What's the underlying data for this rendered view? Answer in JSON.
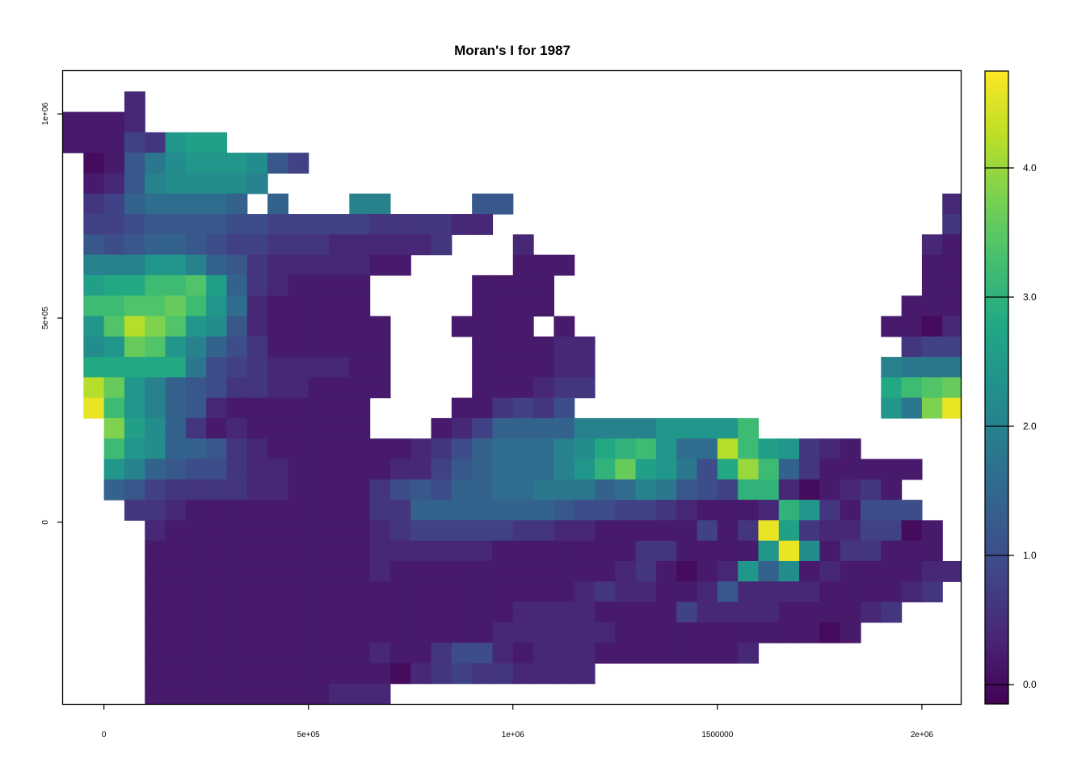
{
  "chart_data": {
    "type": "heatmap",
    "title": "Moran's I for 1987",
    "xlabel": "",
    "ylabel": "",
    "xlim": [
      -100000,
      2095000
    ],
    "ylim": [
      -445000,
      1105000
    ],
    "x_ticks": [
      {
        "value": 0,
        "label": "0"
      },
      {
        "value": 500000,
        "label": "5e+05"
      },
      {
        "value": 1000000,
        "label": "1e+06"
      },
      {
        "value": 1500000,
        "label": "1500000"
      },
      {
        "value": 2000000,
        "label": "2e+06"
      }
    ],
    "y_ticks": [
      {
        "value": 0,
        "label": "0"
      },
      {
        "value": 500000,
        "label": "5e+05"
      },
      {
        "value": 1000000,
        "label": "1e+06"
      }
    ],
    "grid": false,
    "colorscale": "viridis",
    "color_range": [
      -0.15,
      4.75
    ],
    "legend": {
      "position": "right",
      "ticks": [
        {
          "value": 0.0,
          "label": "0.0"
        },
        {
          "value": 1.0,
          "label": "1.0"
        },
        {
          "value": 2.0,
          "label": "2.0"
        },
        {
          "value": 3.0,
          "label": "3.0"
        },
        {
          "value": 4.0,
          "label": "4.0"
        }
      ]
    },
    "cell_size": 50000,
    "x_origin": -100000,
    "y_top": 1105000,
    "missing": ".",
    "code_values": {
      "a": 0.0,
      "b": 0.2,
      "c": 0.4,
      "d": 0.6,
      "e": 0.8,
      "f": 1.0,
      "g": 1.2,
      "h": 1.4,
      "i": 1.6,
      "j": 1.8,
      "k": 2.0,
      "l": 2.2,
      "m": 2.4,
      "n": 2.6,
      "o": 2.8,
      "p": 3.0,
      "q": 3.2,
      "r": 3.4,
      "s": 3.6,
      "t": 3.8,
      "u": 4.0,
      "v": 4.2,
      "w": 4.4,
      "x": 4.6
    },
    "rows": [
      ".............................................hhg...",
      "...c.........................................gfe...",
      "bbbc.........................................edcc..",
      "bbbedmnn.....................................dccb..",
      ".abgjlmmmlge.................................ccbaa.",
      ".bcgkllllk..................................bbaaaa.",
      ".dehiiiih.h...kk....gg.....................cbbaaa..",
      ".eefggggffeeeeeddddcc......................dcbaaab.",
      ".gfghhgfeedddcccccd...c...................cbbbbab..",
      ".kkkmmkhgdcccccbb.....bbb.................bbbbbcdd.",
      ".nooqqrnhdcbbbb.....bbbb..................bbbcdefg.",
      ".qqrrsqmicbbbbb.....bbbb.................bbbcdflnn.",
      ".mrvtrmlgcbbbbbb...bbbb.b...............bbacfjmqmi.",
      ".lmsrmkhfdbbbbbb....bbbbcc...............deeeglnnssmfca",
      ".ooooojfedccccbb....bbbbcc..............kjjjjiklpnmmo.",
      ".vsmkhgfddccbbbb....bbbcdd..............oqrssrsqrrtmjp.",
      ".xqmkhgcbbbbbbb....bbdedf...............mjtxrrqsmtxtmb.",
      "..tnlhdbcbbbbbb...bcehhhhkkkkmmmmq...",
      "..qmlhhgdcbbbbbbbcdfhiiiklopqmiivqnmdcb...",
      "..mkhgffdccbbbbbcceghiiikmpsnmjfouqhdbbbbb.",
      "..hgeddddccbbbbdfgfhhiijjjhikjgfeppcabcdb..",
      "...ddcbbbbbbbbbddhhhhhhhgffeedcbbbcpmdbfff...",
      "....cbbbbbbbbbbcdeeeeeddccbbbbbebdxndcceeab...",
      "....bbbbbbbbbbbccccccbbbbbbbddbbbbmxlbddbbb...",
      "....bbbbbbbbbbbcbbbbbbbbbbbcdbabcmhlbcbbbbcc...",
      "....bbbbbbbbbbbbbbbbbbbbbcdccbbcgccccbbbbcd...",
      "....bbbbbbbbbbbbbbbbbbccccbbbbeccccbbbbcd...",
      "....bbbbbbbbbbbbbbbbbccccccbbbbbbbbbbab...",
      "....bbbbbbbbbbbcbbdffcbcccbbbbbbbc...",
      "....bbbbbbbbbbbbacdeddcccc...",
      "....bbbbbbbbbccc...",
      "............d..."
    ]
  }
}
